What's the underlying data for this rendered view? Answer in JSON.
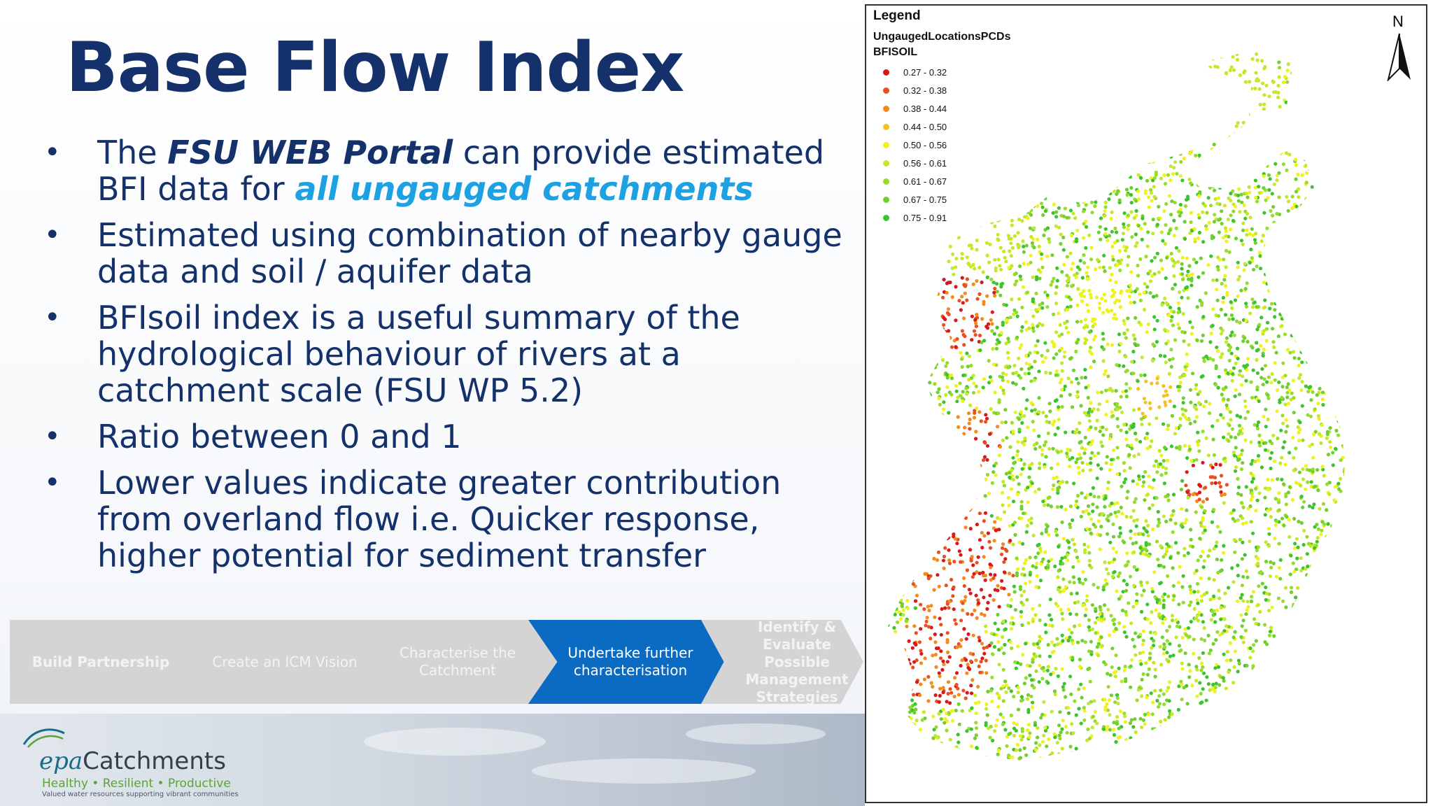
{
  "slide": {
    "title": "Base Flow Index",
    "bullets": [
      {
        "pre": "The ",
        "emph": "FSU WEB Portal",
        "post": " can provide estimated BFI data for ",
        "emph2": "all ungauged catchments"
      },
      {
        "text": "Estimated using combination of nearby gauge data and soil / aquifer data"
      },
      {
        "text": "BFIsoil index is a useful summary of the hydrological behaviour of rivers at a catchment scale (FSU WP 5.2)"
      },
      {
        "text": "Ratio between 0 and 1"
      },
      {
        "text": "Lower values indicate greater contribution from overland flow i.e. Quicker response, higher potential for sediment transfer"
      }
    ],
    "bullet_glyph": "•"
  },
  "process_steps": [
    {
      "label": "Build Partnership",
      "state": "inactive"
    },
    {
      "label": "Create an  ICM Vision",
      "state": "inactive"
    },
    {
      "label": "Characterise the Catchment",
      "state": "inactive"
    },
    {
      "label": "Undertake further characterisation",
      "state": "active"
    },
    {
      "label": "Identify & Evaluate Possible Management Strategies",
      "state": "inactive"
    }
  ],
  "logo": {
    "epa": "epa",
    "catchments": "Catchments",
    "tagline": "Healthy • Resilient • Productive",
    "subtag": "Valued water resources supporting vibrant communities"
  },
  "map": {
    "legend_title": "Legend",
    "layer": "UngaugedLocationsPCDs",
    "field": "BFISOIL",
    "north": "N",
    "classes": [
      {
        "range": "0.27 - 0.32",
        "color": "#d7191c"
      },
      {
        "range": "0.32 - 0.38",
        "color": "#e8501f"
      },
      {
        "range": "0.38 - 0.44",
        "color": "#f38a1c"
      },
      {
        "range": "0.44 - 0.50",
        "color": "#f6c021"
      },
      {
        "range": "0.50 - 0.56",
        "color": "#eef21e"
      },
      {
        "range": "0.56 - 0.61",
        "color": "#c4e82a"
      },
      {
        "range": "0.61 - 0.67",
        "color": "#97dc2d"
      },
      {
        "range": "0.67 - 0.75",
        "color": "#6fd02f"
      },
      {
        "range": "0.75 - 0.91",
        "color": "#3cc42e"
      }
    ]
  },
  "colors": {
    "title": "#15316b",
    "highlight": "#1ea1e3",
    "step_active": "#0b6bc2",
    "step_inactive": "#d4d4d4"
  }
}
